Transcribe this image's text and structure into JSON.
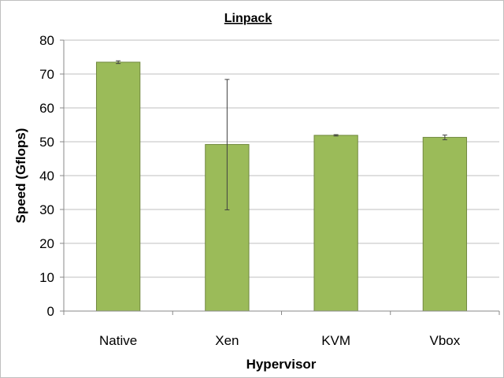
{
  "chart_data": {
    "type": "bar",
    "title": "Linpack",
    "xlabel": "Hypervisor",
    "ylabel": "Speed (Gflops)",
    "categories": [
      "Native",
      "Xen",
      "KVM",
      "Vbox"
    ],
    "values": [
      73.5,
      49.2,
      51.9,
      51.3
    ],
    "error_low": [
      73.1,
      29.9,
      51.7,
      50.6
    ],
    "error_high": [
      73.9,
      68.4,
      52.1,
      52.0
    ],
    "ylim": [
      0,
      80
    ],
    "yticks": [
      0,
      10,
      20,
      30,
      40,
      50,
      60,
      70,
      80
    ],
    "grid": true,
    "legend": "none",
    "bar_color": "#9bbb59",
    "bar_border_color": "#71893f",
    "gridline_color": "#bfbfbf"
  }
}
